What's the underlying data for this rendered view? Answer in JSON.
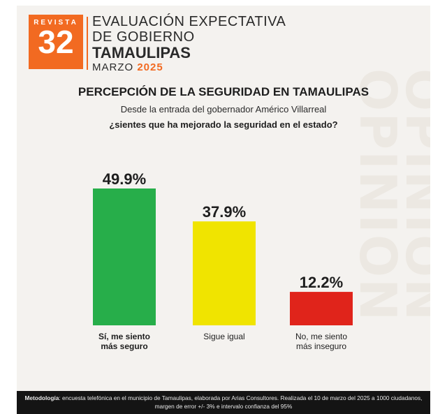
{
  "header": {
    "logo_top": "REVISTA",
    "logo_number": "32",
    "line1": "EVALUACIÓN EXPECTATIVA",
    "line2": "DE GOBIERNO",
    "line3": "TAMAULIPAS",
    "line4_month": "MARZO",
    "line4_year": "2025"
  },
  "watermark": "OPINION OPINION OPINION",
  "colors": {
    "accent": "#f26a21",
    "green": "#27ae4a",
    "yellow": "#f0e400",
    "red": "#e0241b"
  },
  "chart_data": {
    "type": "bar",
    "title": "PERCEPCIÓN DE LA SEGURIDAD EN TAMAULIPAS",
    "subtitle": "Desde la entrada del gobernador Américo Villarreal",
    "question": "¿sientes que ha mejorado la seguridad en el estado?",
    "categories": [
      "Sí, me siento más seguro",
      "Sigue igual",
      "No, me siento más inseguro"
    ],
    "values": [
      49.9,
      37.9,
      12.2
    ],
    "value_labels": [
      "49.9%",
      "37.9%",
      "12.2%"
    ],
    "colors": [
      "#27ae4a",
      "#f0e400",
      "#e0241b"
    ],
    "ylim": [
      0,
      49.9
    ]
  },
  "footer": {
    "label": "Metodología",
    "text": ": encuesta telefónica en el municipio de Tamaulipas, elaborada por Arias Consultores. Realizada el 10 de marzo del 2025 a 1000 ciudadanos, margen de error +/- 3% e intervalo confianza del 95%"
  }
}
